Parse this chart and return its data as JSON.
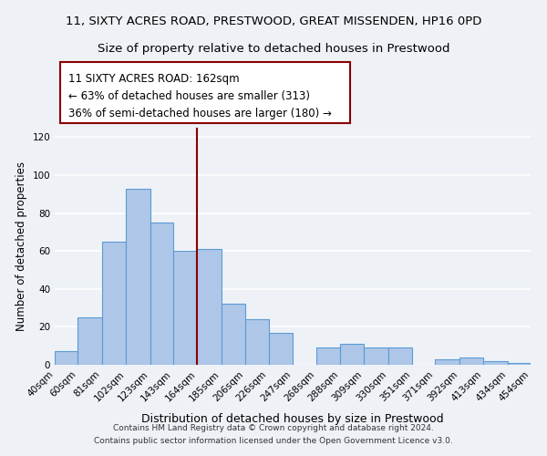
{
  "title": "11, SIXTY ACRES ROAD, PRESTWOOD, GREAT MISSENDEN, HP16 0PD",
  "subtitle": "Size of property relative to detached houses in Prestwood",
  "xlabel": "Distribution of detached houses by size in Prestwood",
  "ylabel": "Number of detached properties",
  "bar_left_edges": [
    40,
    60,
    81,
    102,
    123,
    143,
    164,
    185,
    206,
    226,
    247,
    268,
    288,
    309,
    330,
    351,
    371,
    392,
    413,
    434
  ],
  "bar_heights": [
    7,
    25,
    65,
    93,
    75,
    60,
    61,
    32,
    24,
    17,
    0,
    9,
    11,
    9,
    9,
    0,
    3,
    4,
    2,
    1
  ],
  "bar_widths": [
    20,
    21,
    21,
    21,
    20,
    21,
    21,
    21,
    20,
    21,
    21,
    20,
    21,
    21,
    21,
    20,
    21,
    21,
    21,
    20
  ],
  "tick_labels": [
    "40sqm",
    "60sqm",
    "81sqm",
    "102sqm",
    "123sqm",
    "143sqm",
    "164sqm",
    "185sqm",
    "206sqm",
    "226sqm",
    "247sqm",
    "268sqm",
    "288sqm",
    "309sqm",
    "330sqm",
    "351sqm",
    "371sqm",
    "392sqm",
    "413sqm",
    "434sqm",
    "454sqm"
  ],
  "bar_color": "#aec6e8",
  "bar_edge_color": "#5b9bd5",
  "reference_line_x": 164,
  "reference_line_color": "#8b0000",
  "annotation_line1": "11 SIXTY ACRES ROAD: 162sqm",
  "annotation_line2": "← 63% of detached houses are smaller (313)",
  "annotation_line3": "36% of semi-detached houses are larger (180) →",
  "annotation_box_edge_color": "#8b0000",
  "annotation_box_bg_color": "#ffffff",
  "ylim": [
    0,
    125
  ],
  "yticks": [
    0,
    20,
    40,
    60,
    80,
    100,
    120
  ],
  "footer_text": "Contains HM Land Registry data © Crown copyright and database right 2024.\nContains public sector information licensed under the Open Government Licence v3.0.",
  "background_color": "#eef2f7",
  "grid_color": "#ffffff",
  "title_fontsize": 9.5,
  "subtitle_fontsize": 9.5,
  "xlabel_fontsize": 9,
  "ylabel_fontsize": 8.5,
  "tick_fontsize": 7.5,
  "annotation_fontsize": 8.5,
  "footer_fontsize": 6.5
}
